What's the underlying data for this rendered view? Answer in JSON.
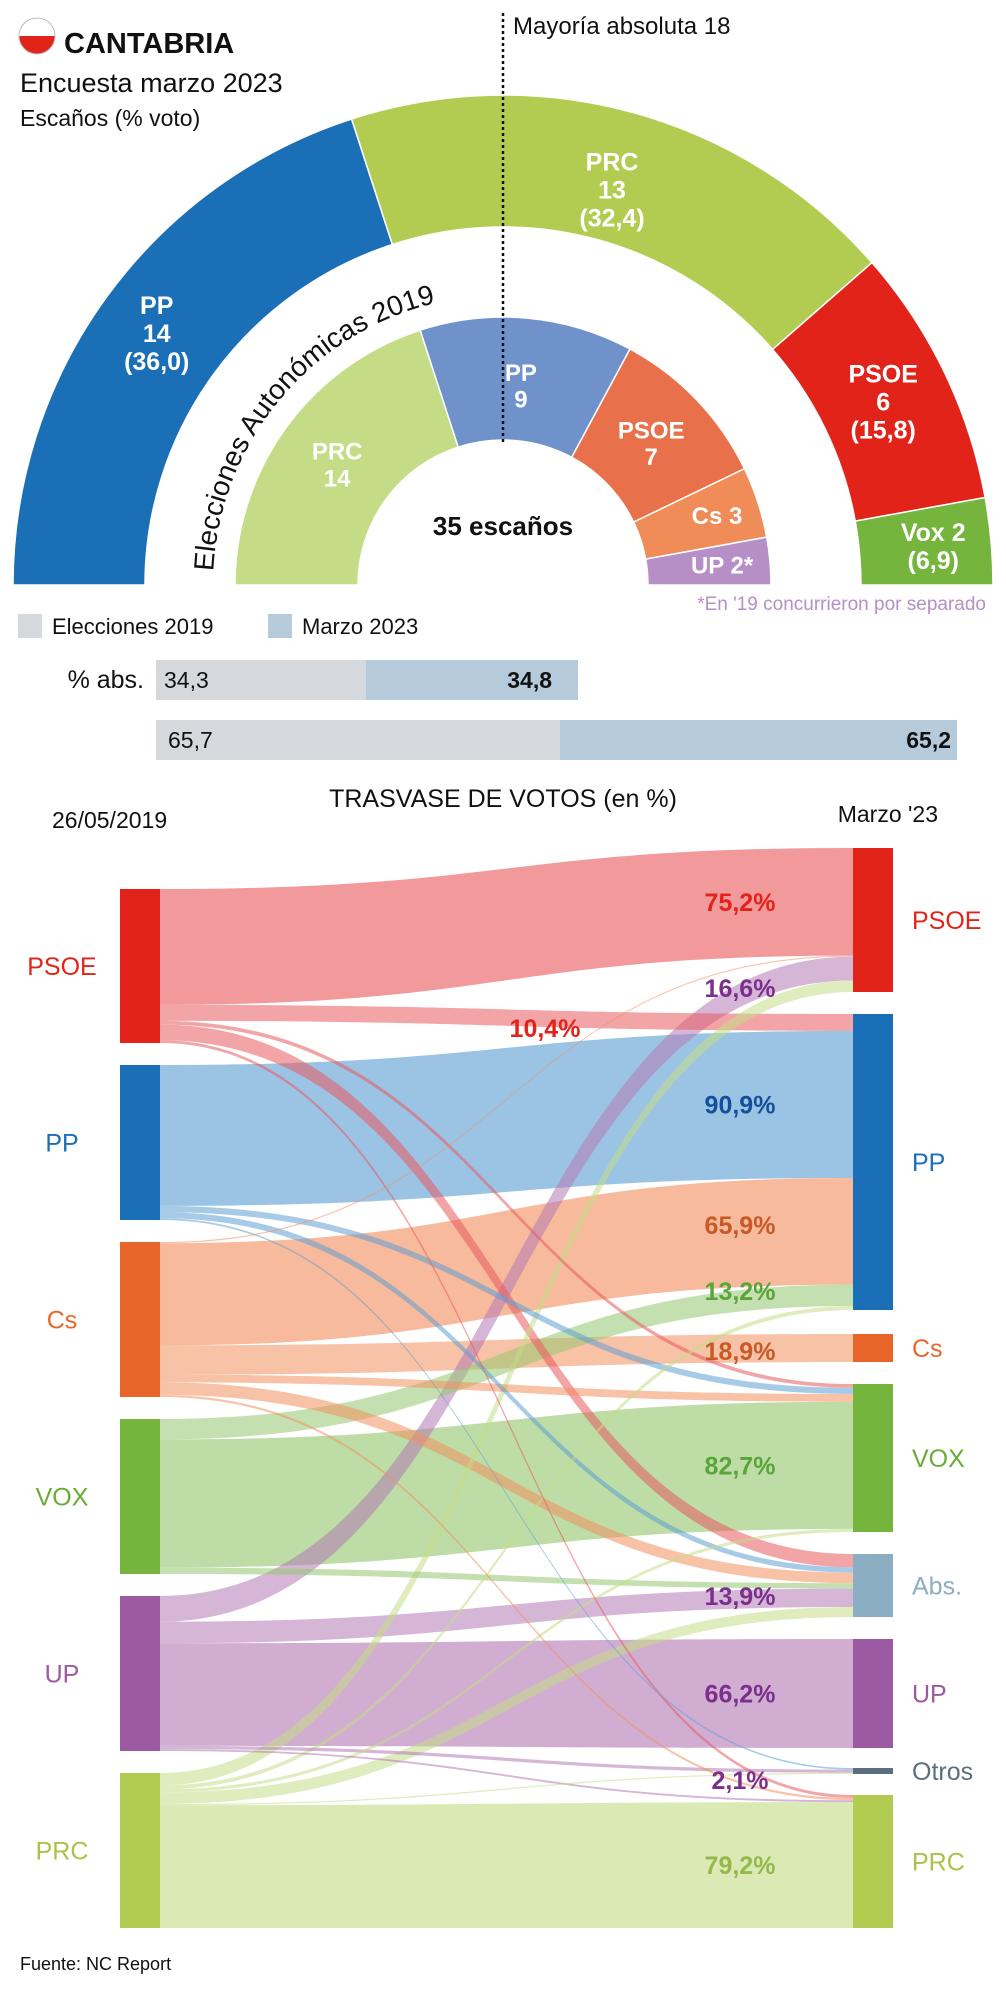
{
  "header": {
    "region": "CANTABRIA",
    "title": "Encuesta marzo 2023",
    "subtitle": "Escaños (% voto)",
    "majority_label": "Mayoría absoluta 18",
    "inner_ring_label": "Elecciones Autonómicas 2019",
    "center_label": "35 escaños",
    "footnote": "*En '19 concurrieron por separado"
  },
  "colors": {
    "PP": "#1b6fb6",
    "PRC": "#b2cc52",
    "PSOE": "#e2231a",
    "Vox": "#76b53d",
    "PRC19": "#c5dc86",
    "PP19": "#6e92c9",
    "PSOE19": "#e8704a",
    "Cs19": "#ef8c58",
    "UP19": "#b58fc6",
    "Cs": "#e8662a",
    "UP": "#9b5aa1",
    "Abs": "#8caec3",
    "Otros": "#5a6e7e",
    "bar2019": "#d5d9dd",
    "bar2023": "#b5cbdb",
    "footnote": "#b58fc6"
  },
  "chart_data": [
    {
      "type": "pie",
      "title": "Encuesta marzo 2023",
      "subtitle": "Escaños (% voto)",
      "total_seats": 35,
      "majority": 18,
      "slices": [
        {
          "party": "PP",
          "label": "PP",
          "seats": 14,
          "seats_text": "14",
          "vote_text": "(36,0)"
        },
        {
          "party": "PRC",
          "label": "PRC",
          "seats": 13,
          "seats_text": "13",
          "vote_text": "(32,4)"
        },
        {
          "party": "PSOE",
          "label": "PSOE",
          "seats": 6,
          "seats_text": "6",
          "vote_text": "(15,8)"
        },
        {
          "party": "Vox",
          "label": "Vox 2",
          "seats": 2,
          "seats_text": "",
          "vote_text": "(6,9)"
        }
      ]
    },
    {
      "type": "pie",
      "title": "Elecciones Autonómicas 2019",
      "total_seats": 35,
      "slices": [
        {
          "party": "PRC19",
          "label": "PRC",
          "seats": 14,
          "seats_text": "14"
        },
        {
          "party": "PP19",
          "label": "PP",
          "seats": 9,
          "seats_text": "9"
        },
        {
          "party": "PSOE19",
          "label": "PSOE",
          "seats": 7,
          "seats_text": "7"
        },
        {
          "party": "Cs19",
          "label": "Cs 3",
          "seats": 3,
          "seats_text": ""
        },
        {
          "party": "UP19",
          "label": "UP 2*",
          "seats": 2,
          "seats_text": ""
        }
      ]
    },
    {
      "type": "bar",
      "legend": [
        "Elecciones 2019",
        "Marzo 2023"
      ],
      "rows": [
        {
          "label": "% abs.",
          "values": [
            34.3,
            34.8
          ],
          "texts": [
            "34,3",
            "34,8"
          ]
        },
        {
          "label": "",
          "values": [
            65.7,
            65.2
          ],
          "texts": [
            "65,7",
            "65,2"
          ]
        }
      ]
    },
    {
      "type": "sankey",
      "title": "TRASVASE DE VOTOS (en %)",
      "left_title": "26/05/2019",
      "right_title": "Marzo '23",
      "sources": [
        "PSOE",
        "PP",
        "Cs",
        "VOX",
        "UP",
        "PRC"
      ],
      "targets": [
        "PSOE",
        "PP",
        "Cs",
        "VOX",
        "Abs.",
        "UP",
        "Otros",
        "PRC"
      ],
      "flows": [
        {
          "from": "PSOE",
          "to": "PSOE",
          "value": 75.2,
          "label": "75,2%"
        },
        {
          "from": "PSOE",
          "to": "PP",
          "value": 10.4,
          "label": "10,4%"
        },
        {
          "from": "PSOE",
          "to": "VOX",
          "value": 2.5,
          "label": ""
        },
        {
          "from": "PSOE",
          "to": "Abs.",
          "value": 10.0,
          "label": ""
        },
        {
          "from": "PSOE",
          "to": "PRC",
          "value": 1.9,
          "label": ""
        },
        {
          "from": "PP",
          "to": "PP",
          "value": 90.9,
          "label": "90,9%"
        },
        {
          "from": "PP",
          "to": "VOX",
          "value": 4.0,
          "label": ""
        },
        {
          "from": "PP",
          "to": "Abs.",
          "value": 4.0,
          "label": ""
        },
        {
          "from": "PP",
          "to": "Otros",
          "value": 1.1,
          "label": ""
        },
        {
          "from": "Cs",
          "to": "PSOE",
          "value": 0.8,
          "label": ""
        },
        {
          "from": "Cs",
          "to": "PP",
          "value": 65.9,
          "label": "65,9%"
        },
        {
          "from": "Cs",
          "to": "Cs",
          "value": 18.9,
          "label": "18,9%"
        },
        {
          "from": "Cs",
          "to": "VOX",
          "value": 5.0,
          "label": ""
        },
        {
          "from": "Cs",
          "to": "Abs.",
          "value": 8.0,
          "label": ""
        },
        {
          "from": "Cs",
          "to": "PRC",
          "value": 1.4,
          "label": ""
        },
        {
          "from": "VOX",
          "to": "PP",
          "value": 13.2,
          "label": "13,2%"
        },
        {
          "from": "VOX",
          "to": "VOX",
          "value": 82.7,
          "label": "82,7%"
        },
        {
          "from": "VOX",
          "to": "Abs.",
          "value": 4.1,
          "label": ""
        },
        {
          "from": "UP",
          "to": "PSOE",
          "value": 16.6,
          "label": "16,6%"
        },
        {
          "from": "UP",
          "to": "Abs.",
          "value": 13.9,
          "label": "13,9%"
        },
        {
          "from": "UP",
          "to": "UP",
          "value": 66.2,
          "label": "66,2%"
        },
        {
          "from": "UP",
          "to": "Otros",
          "value": 2.1,
          "label": "2,1%"
        },
        {
          "from": "UP",
          "to": "PRC",
          "value": 1.2,
          "label": ""
        },
        {
          "from": "PRC",
          "to": "PSOE",
          "value": 8.0,
          "label": ""
        },
        {
          "from": "PRC",
          "to": "PP",
          "value": 2.5,
          "label": ""
        },
        {
          "from": "PRC",
          "to": "VOX",
          "value": 2.0,
          "label": ""
        },
        {
          "from": "PRC",
          "to": "Abs.",
          "value": 7.5,
          "label": ""
        },
        {
          "from": "PRC",
          "to": "Otros",
          "value": 0.8,
          "label": ""
        },
        {
          "from": "PRC",
          "to": "PRC",
          "value": 79.2,
          "label": "79,2%"
        }
      ]
    }
  ],
  "source": "Fuente: NC Report"
}
